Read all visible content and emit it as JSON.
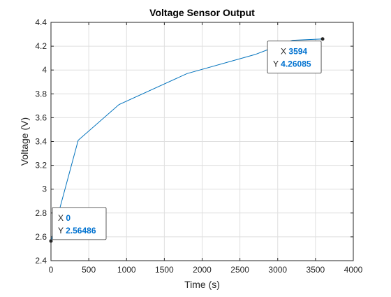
{
  "colors": {
    "series": "#0072BD",
    "datatip_value": "#0072d0",
    "marker": "#262626"
  },
  "chart_data": {
    "type": "line",
    "title": "Voltage Sensor Output",
    "xlabel": "Time (s)",
    "ylabel": "Voltage (V)",
    "xlim": [
      0,
      4000
    ],
    "ylim": [
      2.4,
      4.4
    ],
    "xticks": [
      0,
      500,
      1000,
      1500,
      2000,
      2500,
      3000,
      3500,
      4000
    ],
    "xtick_labels": [
      "0",
      "500",
      "1000",
      "1500",
      "2000",
      "2500",
      "3000",
      "3500",
      "4000"
    ],
    "yticks": [
      2.4,
      2.6,
      2.8,
      3.0,
      3.2,
      3.4,
      3.6,
      3.8,
      4.0,
      4.2,
      4.4
    ],
    "ytick_labels": [
      "2.4",
      "2.6",
      "2.8",
      "3",
      "3.2",
      "3.4",
      "3.6",
      "3.8",
      "4",
      "4.2",
      "4.4"
    ],
    "grid": true,
    "series": [
      {
        "x": [
          0,
          360,
          900,
          1800,
          2700,
          3200,
          3594
        ],
        "y": [
          2.56486,
          3.41,
          3.71,
          3.97,
          4.13,
          4.25,
          4.26085
        ]
      }
    ],
    "datatips": [
      {
        "x_prefix": "X",
        "x_value": "0",
        "y_prefix": "Y",
        "y_value": "2.56486",
        "x": 0,
        "y": 2.56486,
        "placement": "upper-right"
      },
      {
        "x_prefix": "X",
        "x_value": "3594",
        "y_prefix": "Y",
        "y_value": "4.26085",
        "x": 3594,
        "y": 4.26085,
        "placement": "lower-left"
      }
    ]
  }
}
